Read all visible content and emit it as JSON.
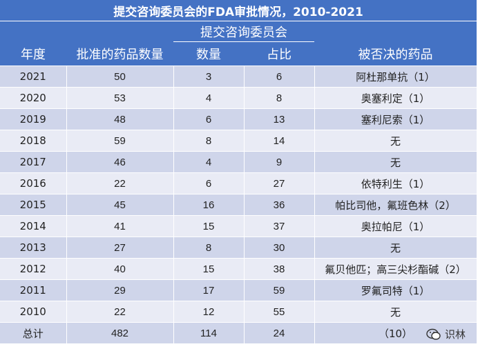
{
  "title": "提交咨询委员会的FDA审批情况，2010-2021",
  "headers": {
    "year": "年度",
    "approved": "批准的药品数量",
    "committee_group": "提交咨询委员会",
    "count": "数量",
    "ratio": "占比",
    "rejected": "被否决的药品"
  },
  "rows": [
    {
      "year": "2021",
      "approved": "50",
      "count": "3",
      "ratio": "6",
      "rejected": "阿杜那单抗（1）"
    },
    {
      "year": "2020",
      "approved": "53",
      "count": "4",
      "ratio": "8",
      "rejected": "奥塞利定（1）"
    },
    {
      "year": "2019",
      "approved": "48",
      "count": "6",
      "ratio": "13",
      "rejected": "塞利尼索（1）"
    },
    {
      "year": "2018",
      "approved": "59",
      "count": "8",
      "ratio": "14",
      "rejected": "无"
    },
    {
      "year": "2017",
      "approved": "46",
      "count": "4",
      "ratio": "9",
      "rejected": "无"
    },
    {
      "year": "2016",
      "approved": "22",
      "count": "6",
      "ratio": "27",
      "rejected": "依特利生（1）"
    },
    {
      "year": "2015",
      "approved": "45",
      "count": "16",
      "ratio": "36",
      "rejected": "帕比司他，氟班色林（2）"
    },
    {
      "year": "2014",
      "approved": "41",
      "count": "15",
      "ratio": "37",
      "rejected": "奥拉帕尼（1）"
    },
    {
      "year": "2013",
      "approved": "27",
      "count": "8",
      "ratio": "30",
      "rejected": "无"
    },
    {
      "year": "2012",
      "approved": "40",
      "count": "15",
      "ratio": "38",
      "rejected": "氟贝他匹；高三尖杉酯碱（2）"
    },
    {
      "year": "2011",
      "approved": "29",
      "count": "17",
      "ratio": "59",
      "rejected": "罗氟司特（1）"
    },
    {
      "year": "2010",
      "approved": "22",
      "count": "12",
      "ratio": "55",
      "rejected": "无"
    },
    {
      "year": "总计",
      "approved": "482",
      "count": "114",
      "ratio": "24",
      "rejected": "（10）"
    }
  ],
  "watermark": {
    "text": "识林",
    "icon": "wechat-icon"
  }
}
